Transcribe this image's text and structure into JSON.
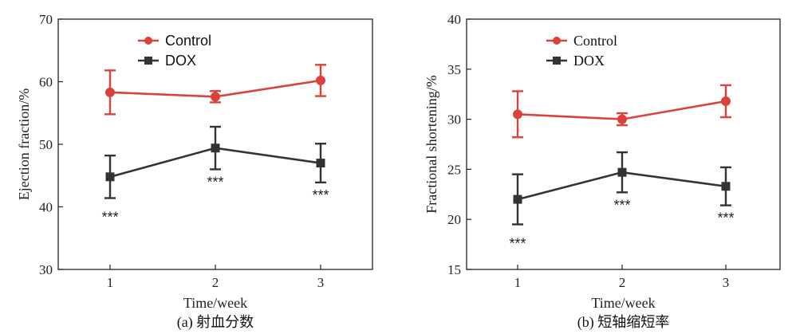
{
  "chart_data": [
    {
      "type": "line",
      "panel": "a",
      "caption": "(a) 射血分数",
      "xlabel": "Time/week",
      "ylabel": "Ejection fraction/%",
      "x": [
        1,
        2,
        3
      ],
      "x_tick_labels": [
        "1",
        "2",
        "3"
      ],
      "ylim": [
        30,
        70
      ],
      "y_ticks": [
        30,
        40,
        50,
        60,
        70
      ],
      "y_tick_labels": [
        "30",
        "40",
        "50",
        "60",
        "70"
      ],
      "legend_position": "top-left",
      "series": [
        {
          "name": "Control",
          "color": "#d9433c",
          "marker": "circle",
          "values": [
            58.3,
            57.6,
            60.2
          ],
          "error": [
            3.5,
            0.9,
            2.5
          ]
        },
        {
          "name": "DOX",
          "color": "#333333",
          "marker": "square",
          "values": [
            44.8,
            49.4,
            47.0
          ],
          "error": [
            3.4,
            3.4,
            3.1
          ]
        }
      ],
      "annotations": [
        {
          "x": 1,
          "text": "***"
        },
        {
          "x": 2,
          "text": "***"
        },
        {
          "x": 3,
          "text": "***"
        }
      ]
    },
    {
      "type": "line",
      "panel": "b",
      "caption": "(b) 短轴缩短率",
      "xlabel": "Time/week",
      "ylabel": "Fractional shortening/%",
      "x": [
        1,
        2,
        3
      ],
      "x_tick_labels": [
        "1",
        "2",
        "3"
      ],
      "ylim": [
        15,
        40
      ],
      "y_ticks": [
        15,
        20,
        25,
        30,
        35,
        40
      ],
      "y_tick_labels": [
        "15",
        "20",
        "25",
        "30",
        "35",
        "40"
      ],
      "legend_position": "top-left",
      "series": [
        {
          "name": "Control",
          "color": "#d9433c",
          "marker": "circle",
          "values": [
            30.5,
            30.0,
            31.8
          ],
          "error": [
            2.3,
            0.6,
            1.6
          ]
        },
        {
          "name": "DOX",
          "color": "#333333",
          "marker": "square",
          "values": [
            22.0,
            24.7,
            23.3
          ],
          "error": [
            2.5,
            2.0,
            1.9
          ]
        }
      ],
      "annotations": [
        {
          "x": 1,
          "text": "***"
        },
        {
          "x": 2,
          "text": "***"
        },
        {
          "x": 3,
          "text": "***"
        }
      ]
    }
  ]
}
